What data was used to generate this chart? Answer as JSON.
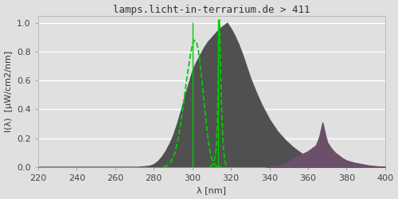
{
  "title": "lamps.licht-in-terrarium.de > 411",
  "xlabel": "λ [nm]",
  "ylabel": "I(λ)  [μW/cm2/nm]",
  "xlim": [
    220,
    400
  ],
  "ylim": [
    0.0,
    1.05
  ],
  "yticks": [
    0.0,
    0.2,
    0.4,
    0.6,
    0.8,
    1.0
  ],
  "xticks": [
    220,
    240,
    260,
    280,
    300,
    320,
    340,
    360,
    380,
    400
  ],
  "bg_color": "#e0e0e0",
  "axes_bg_color": "#e0e0e0",
  "grid_color": "#ffffff",
  "main_fill_color": "#505050",
  "purple_fill_color": "#6a5068",
  "green_line_color": "#00cc00",
  "main_spectrum_x": [
    220,
    272,
    275,
    278,
    280,
    282,
    284,
    286,
    288,
    290,
    292,
    294,
    296,
    298,
    300,
    302,
    304,
    306,
    308,
    310,
    312,
    314,
    315,
    316,
    317,
    318,
    319,
    320,
    322,
    324,
    326,
    328,
    330,
    333,
    336,
    340,
    344,
    348,
    352,
    356,
    360,
    364,
    368,
    372,
    376,
    380,
    385,
    390,
    395,
    400
  ],
  "main_spectrum_y": [
    0.0,
    0.0,
    0.005,
    0.01,
    0.02,
    0.04,
    0.07,
    0.11,
    0.16,
    0.22,
    0.3,
    0.39,
    0.49,
    0.58,
    0.67,
    0.73,
    0.78,
    0.83,
    0.87,
    0.9,
    0.93,
    0.96,
    0.97,
    0.98,
    0.99,
    1.0,
    0.98,
    0.96,
    0.91,
    0.85,
    0.78,
    0.7,
    0.62,
    0.52,
    0.43,
    0.33,
    0.25,
    0.19,
    0.14,
    0.1,
    0.07,
    0.05,
    0.03,
    0.02,
    0.01,
    0.007,
    0.004,
    0.002,
    0.001,
    0.0
  ],
  "purple_spectrum_x": [
    338,
    342,
    346,
    350,
    354,
    357,
    360,
    362,
    364,
    365,
    366,
    367,
    367.5,
    368,
    369,
    370,
    372,
    374,
    376,
    378,
    380,
    384,
    388,
    392,
    396,
    400
  ],
  "purple_spectrum_y": [
    0.0,
    0.005,
    0.015,
    0.04,
    0.07,
    0.09,
    0.11,
    0.13,
    0.15,
    0.18,
    0.22,
    0.28,
    0.31,
    0.28,
    0.22,
    0.17,
    0.13,
    0.1,
    0.08,
    0.06,
    0.045,
    0.03,
    0.02,
    0.01,
    0.005,
    0.0
  ],
  "green_bell_x": [
    285,
    287,
    289,
    291,
    293,
    295,
    297,
    299,
    300,
    301,
    302,
    303,
    304,
    305,
    306,
    307,
    308,
    309,
    310,
    311,
    312,
    313,
    314,
    315
  ],
  "green_bell_y": [
    0.0,
    0.01,
    0.04,
    0.1,
    0.22,
    0.4,
    0.6,
    0.78,
    0.85,
    0.88,
    0.87,
    0.82,
    0.72,
    0.6,
    0.46,
    0.33,
    0.21,
    0.12,
    0.06,
    0.03,
    0.01,
    0.005,
    0.002,
    0.0
  ],
  "green_spike_x": [
    309,
    310,
    311,
    312,
    312.5,
    313,
    313.2,
    313.4,
    313.6,
    313.8,
    314.0,
    314.2,
    314.5,
    315,
    316,
    317,
    318
  ],
  "green_spike_y": [
    0.0,
    0.01,
    0.03,
    0.08,
    0.15,
    0.3,
    0.45,
    0.62,
    0.8,
    0.95,
    1.02,
    0.95,
    0.75,
    0.45,
    0.15,
    0.03,
    0.0
  ],
  "vline1_x": 300,
  "vline2_x": 313.4,
  "title_fontsize": 9,
  "label_fontsize": 8,
  "tick_fontsize": 8
}
